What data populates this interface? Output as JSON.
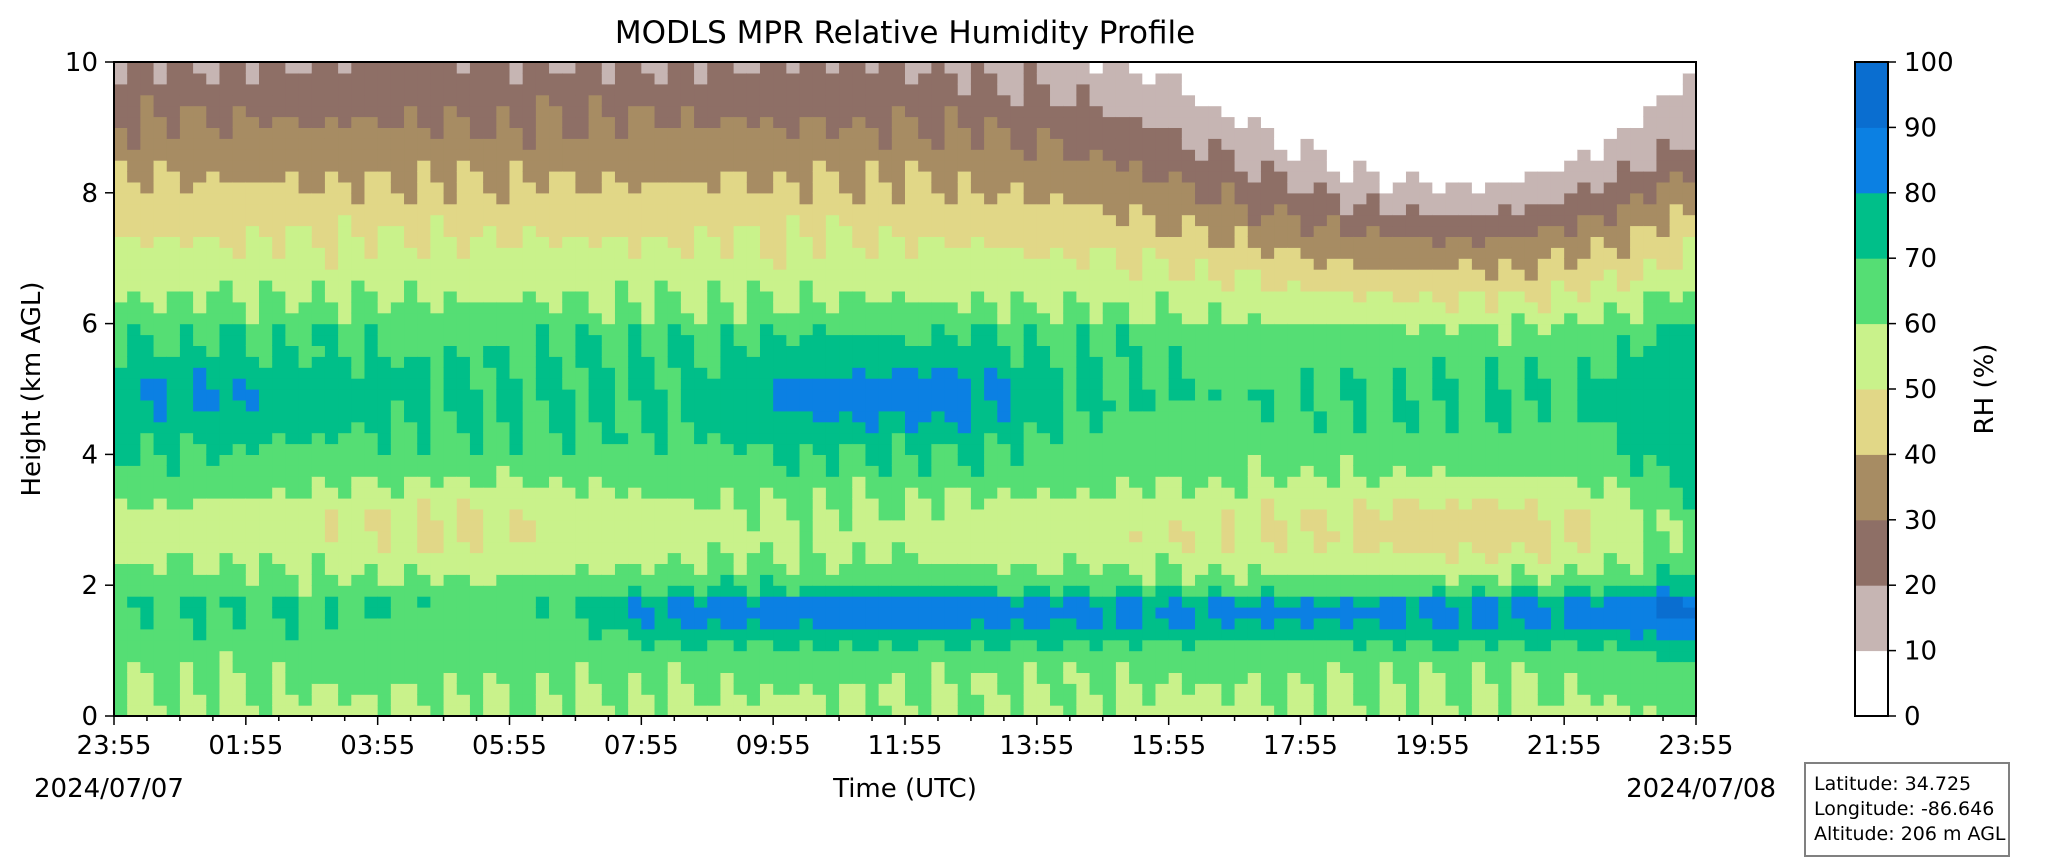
{
  "chart_data": {
    "type": "heatmap",
    "plot_style": "filled contour",
    "title": "MODLS MPR Relative Humidity Profile",
    "xlabel": "Time (UTC)",
    "ylabel": "Height (km AGL)",
    "x_ticks": [
      "23:55",
      "01:55",
      "03:55",
      "05:55",
      "07:55",
      "09:55",
      "11:55",
      "13:55",
      "15:55",
      "17:55",
      "19:55",
      "21:55",
      "23:55"
    ],
    "x_start_date": "2024/07/07",
    "x_end_date": "2024/07/08",
    "y_ticks": [
      "0",
      "2",
      "4",
      "6",
      "8",
      "10"
    ],
    "ylim": [
      0,
      10
    ],
    "colorbar": {
      "label": "RH (%)",
      "ticks": [
        "0",
        "10",
        "20",
        "30",
        "40",
        "50",
        "60",
        "70",
        "80",
        "90",
        "100"
      ],
      "levels": [
        0,
        10,
        20,
        30,
        40,
        50,
        60,
        70,
        80,
        90,
        100
      ],
      "colors": [
        "#ffffff",
        "#c6b5b3",
        "#8e6f66",
        "#a78c63",
        "#e1d787",
        "#c9f28b",
        "#55de74",
        "#00bf89",
        "#0b80e3",
        "#0a6ed0",
        "#33359c"
      ]
    },
    "regions": [
      {
        "rh_range": [
          10,
          20
        ],
        "description": "upper levels 19:55-22:30, 8-10 km"
      },
      {
        "rh_range": [
          0,
          10
        ],
        "description": "pockets near 20:30-21:15, 8.5-10 km"
      },
      {
        "rh_range": [
          20,
          30
        ],
        "description": "top layer 8-10 km, 23:55-13:55"
      },
      {
        "rh_range": [
          30,
          50
        ],
        "description": "layers around 6.5-9 km"
      },
      {
        "rh_range": [
          60,
          70
        ],
        "description": "mid levels 4-6 km and 1-3 km"
      },
      {
        "rh_range": [
          70,
          80
        ],
        "description": "moist layers near 4-6 km and 1-2 km"
      },
      {
        "rh_range": [
          80,
          90
        ],
        "description": "moist cores near 4.5-5.5 km and 1.2-1.8 km"
      }
    ]
  },
  "station": {
    "latitude": "Latitude: 34.725",
    "longitude": "Longitude: -86.646",
    "altitude": "Altitude: 206 m AGL"
  }
}
